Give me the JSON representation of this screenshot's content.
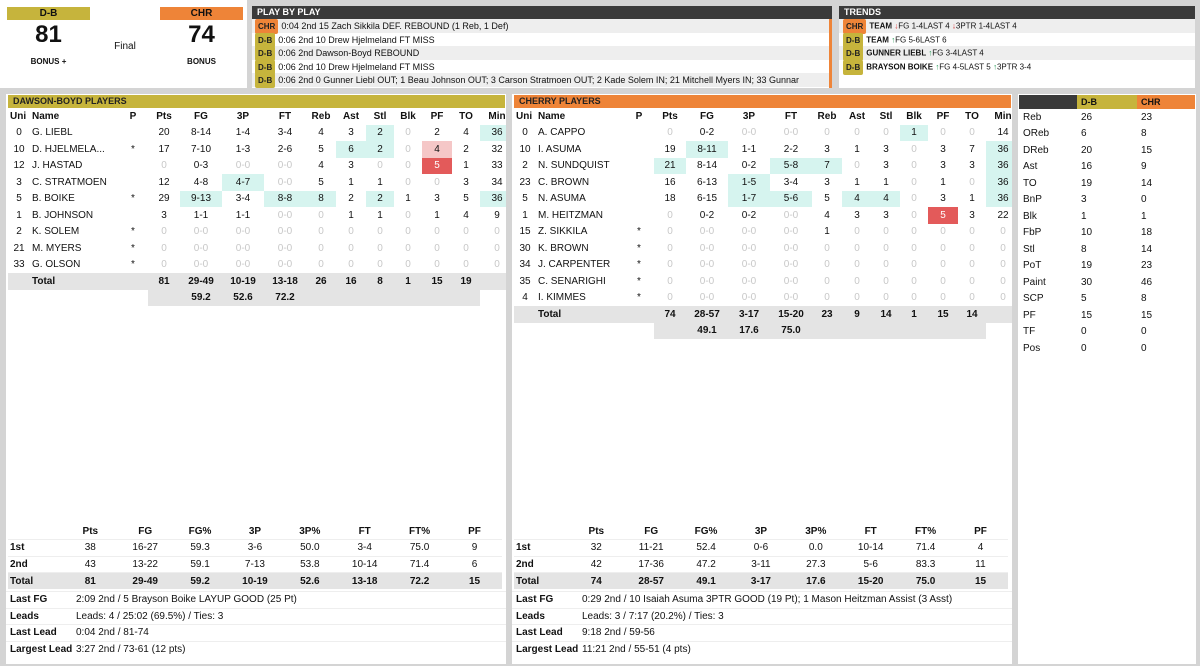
{
  "colors": {
    "db": "#c6b43c",
    "chr": "#ee8438"
  },
  "score": {
    "home": {
      "abbr": "D-B",
      "score": "81",
      "bonus": "BONUS"
    },
    "away": {
      "abbr": "CHR",
      "score": "74",
      "bonus": "BONUS"
    },
    "status": "Final",
    "bonus_plus": "+"
  },
  "pbp": {
    "title": "PLAY BY PLAY",
    "rows": [
      {
        "team": "CHR",
        "text": "0:04 2nd 15 Zach Sikkila DEF. REBOUND (1 Reb, 1 Def)"
      },
      {
        "team": "D-B",
        "text": "0:06 2nd 10 Drew Hjelmeland FT MISS"
      },
      {
        "team": "D-B",
        "text": "0:06 2nd Dawson-Boyd REBOUND"
      },
      {
        "team": "D-B",
        "text": "0:06 2nd 10 Drew Hjelmeland FT MISS"
      },
      {
        "team": "D-B",
        "text": "0:06 2nd 0 Gunner Liebl OUT; 1 Beau Johnson OUT; 3 Carson Stratmoen OUT; 2 Kade Solem IN; 21 Mitchell Myers IN; 33 Gunnar"
      }
    ]
  },
  "trends": {
    "title": "TRENDS",
    "rows": [
      {
        "team": "CHR",
        "who": "TEAM",
        "items": [
          {
            "dir": "dn",
            "text": "FG 1-4LAST 4"
          },
          {
            "dir": "dn",
            "text": "3PTR 1-4LAST 4"
          }
        ]
      },
      {
        "team": "D-B",
        "who": "TEAM",
        "items": [
          {
            "dir": "up",
            "text": "FG 5-6LAST 6"
          }
        ]
      },
      {
        "team": "D-B",
        "who": "GUNNER LIEBL",
        "items": [
          {
            "dir": "up",
            "text": "FG 3-4LAST 4"
          }
        ]
      },
      {
        "team": "D-B",
        "who": "BRAYSON BOIKE",
        "items": [
          {
            "dir": "up",
            "text": "FG 4-5LAST 5"
          },
          {
            "dir": "up",
            "text": "3PTR 3-4"
          }
        ]
      }
    ]
  },
  "columns": [
    "Uni",
    "Name",
    "P",
    "Pts",
    "FG",
    "3P",
    "FT",
    "Reb",
    "Ast",
    "Stl",
    "Blk",
    "PF",
    "TO",
    "Min"
  ],
  "db": {
    "title": "DAWSON-BOYD PLAYERS",
    "players": [
      [
        "0",
        "G. LIEBL",
        "",
        "20",
        "8-14",
        "1-4",
        "3-4",
        "4",
        "3",
        "2",
        "0",
        "2",
        "4",
        "36"
      ],
      [
        "10",
        "D. HJELMELA...",
        "*",
        "17",
        "7-10",
        "1-3",
        "2-6",
        "5",
        "6",
        "2",
        "0",
        "4",
        "2",
        "32"
      ],
      [
        "12",
        "J. HASTAD",
        "",
        "0",
        "0-3",
        "0-0",
        "0-0",
        "4",
        "3",
        "0",
        "0",
        "5",
        "1",
        "33"
      ],
      [
        "3",
        "C. STRATMOEN",
        "",
        "12",
        "4-8",
        "4-7",
        "0-0",
        "5",
        "1",
        "1",
        "0",
        "0",
        "3",
        "34"
      ],
      [
        "5",
        "B. BOIKE",
        "*",
        "29",
        "9-13",
        "3-4",
        "8-8",
        "8",
        "2",
        "2",
        "1",
        "3",
        "5",
        "36"
      ],
      [
        "1",
        "B. JOHNSON",
        "",
        "3",
        "1-1",
        "1-1",
        "0-0",
        "0",
        "1",
        "1",
        "0",
        "1",
        "4",
        "9"
      ],
      [
        "2",
        "K. SOLEM",
        "*",
        "0",
        "0-0",
        "0-0",
        "0-0",
        "0",
        "0",
        "0",
        "0",
        "0",
        "0",
        "0"
      ],
      [
        "21",
        "M. MYERS",
        "*",
        "0",
        "0-0",
        "0-0",
        "0-0",
        "0",
        "0",
        "0",
        "0",
        "0",
        "0",
        "0"
      ],
      [
        "33",
        "G. OLSON",
        "*",
        "0",
        "0-0",
        "0-0",
        "0-0",
        "0",
        "0",
        "0",
        "0",
        "0",
        "0",
        "0"
      ]
    ],
    "total": [
      "",
      "Total",
      "",
      "81",
      "29-49",
      "10-19",
      "13-18",
      "26",
      "16",
      "8",
      "1",
      "15",
      "19",
      ""
    ],
    "pct": [
      "59.2",
      "52.6",
      "72.2"
    ],
    "halves": {
      "headers": [
        "",
        "Pts",
        "FG",
        "FG%",
        "3P",
        "3P%",
        "FT",
        "FT%",
        "PF"
      ],
      "rows": [
        [
          "1st",
          "38",
          "16-27",
          "59.3",
          "3-6",
          "50.0",
          "3-4",
          "75.0",
          "9"
        ],
        [
          "2nd",
          "43",
          "13-22",
          "59.1",
          "7-13",
          "53.8",
          "10-14",
          "71.4",
          "6"
        ],
        [
          "Total",
          "81",
          "29-49",
          "59.2",
          "10-19",
          "52.6",
          "13-18",
          "72.2",
          "15"
        ]
      ]
    },
    "info": [
      {
        "label": "Last FG",
        "value": "2:09 2nd / 5 Brayson Boike LAYUP GOOD (25 Pt)"
      },
      {
        "label": "Leads",
        "value": "Leads: 4 / 25:02 (69.5%) / Ties: 3"
      },
      {
        "label": "Last Lead",
        "value": "0:04 2nd / 81-74"
      },
      {
        "label": "Largest Lead",
        "value": "3:27 2nd / 73-61 (12 pts)"
      }
    ]
  },
  "chr": {
    "title": "CHERRY PLAYERS",
    "players": [
      [
        "0",
        "A. CAPPO",
        "",
        "0",
        "0-2",
        "0-0",
        "0-0",
        "0",
        "0",
        "0",
        "1",
        "0",
        "0",
        "14"
      ],
      [
        "10",
        "I. ASUMA",
        "",
        "19",
        "8-11",
        "1-1",
        "2-2",
        "3",
        "1",
        "3",
        "0",
        "3",
        "7",
        "36"
      ],
      [
        "2",
        "N. SUNDQUIST",
        "",
        "21",
        "8-14",
        "0-2",
        "5-8",
        "7",
        "0",
        "3",
        "0",
        "3",
        "3",
        "36"
      ],
      [
        "23",
        "C. BROWN",
        "",
        "16",
        "6-13",
        "1-5",
        "3-4",
        "3",
        "1",
        "1",
        "0",
        "1",
        "0",
        "36"
      ],
      [
        "5",
        "N. ASUMA",
        "",
        "18",
        "6-15",
        "1-7",
        "5-6",
        "5",
        "4",
        "4",
        "0",
        "3",
        "1",
        "36"
      ],
      [
        "1",
        "M. HEITZMAN",
        "",
        "0",
        "0-2",
        "0-2",
        "0-0",
        "4",
        "3",
        "3",
        "0",
        "5",
        "3",
        "22"
      ],
      [
        "15",
        "Z. SIKKILA",
        "*",
        "0",
        "0-0",
        "0-0",
        "0-0",
        "1",
        "0",
        "0",
        "0",
        "0",
        "0",
        "0"
      ],
      [
        "30",
        "K. BROWN",
        "*",
        "0",
        "0-0",
        "0-0",
        "0-0",
        "0",
        "0",
        "0",
        "0",
        "0",
        "0",
        "0"
      ],
      [
        "34",
        "J. CARPENTER",
        "*",
        "0",
        "0-0",
        "0-0",
        "0-0",
        "0",
        "0",
        "0",
        "0",
        "0",
        "0",
        "0"
      ],
      [
        "35",
        "C. SENARIGHI",
        "*",
        "0",
        "0-0",
        "0-0",
        "0-0",
        "0",
        "0",
        "0",
        "0",
        "0",
        "0",
        "0"
      ],
      [
        "4",
        "I. KIMMES",
        "*",
        "0",
        "0-0",
        "0-0",
        "0-0",
        "0",
        "0",
        "0",
        "0",
        "0",
        "0",
        "0"
      ]
    ],
    "total": [
      "",
      "Total",
      "",
      "74",
      "28-57",
      "3-17",
      "15-20",
      "23",
      "9",
      "14",
      "1",
      "15",
      "14",
      ""
    ],
    "pct": [
      "49.1",
      "17.6",
      "75.0"
    ],
    "halves": {
      "headers": [
        "",
        "Pts",
        "FG",
        "FG%",
        "3P",
        "3P%",
        "FT",
        "FT%",
        "PF"
      ],
      "rows": [
        [
          "1st",
          "32",
          "11-21",
          "52.4",
          "0-6",
          "0.0",
          "10-14",
          "71.4",
          "4"
        ],
        [
          "2nd",
          "42",
          "17-36",
          "47.2",
          "3-11",
          "27.3",
          "5-6",
          "83.3",
          "11"
        ],
        [
          "Total",
          "74",
          "28-57",
          "49.1",
          "3-17",
          "17.6",
          "15-20",
          "75.0",
          "15"
        ]
      ]
    },
    "info": [
      {
        "label": "Last FG",
        "value": "0:29 2nd / 10 Isaiah Asuma 3PTR GOOD (19 Pt); 1 Mason Heitzman Assist (3 Asst)"
      },
      {
        "label": "Leads",
        "value": "Leads: 3 / 7:17 (20.2%) / Ties: 3"
      },
      {
        "label": "Last Lead",
        "value": "9:18 2nd / 59-56"
      },
      {
        "label": "Largest Lead",
        "value": "11:21 2nd / 55-51 (4 pts)"
      }
    ]
  },
  "team_stats": {
    "headers": [
      "",
      "D-B",
      "CHR"
    ],
    "rows": [
      [
        "Reb",
        "26",
        "23"
      ],
      [
        "OReb",
        "6",
        "8"
      ],
      [
        "DReb",
        "20",
        "15"
      ],
      [
        "Ast",
        "16",
        "9"
      ],
      [
        "TO",
        "19",
        "14"
      ],
      [
        "BnP",
        "3",
        "0"
      ],
      [
        "Blk",
        "1",
        "1"
      ],
      [
        "FbP",
        "10",
        "18"
      ],
      [
        "Stl",
        "8",
        "14"
      ],
      [
        "PoT",
        "19",
        "23"
      ],
      [
        "Paint",
        "30",
        "46"
      ],
      [
        "SCP",
        "5",
        "8"
      ],
      [
        "PF",
        "15",
        "15"
      ],
      [
        "TF",
        "0",
        "0"
      ],
      [
        "Pos",
        "0",
        "0"
      ]
    ]
  }
}
